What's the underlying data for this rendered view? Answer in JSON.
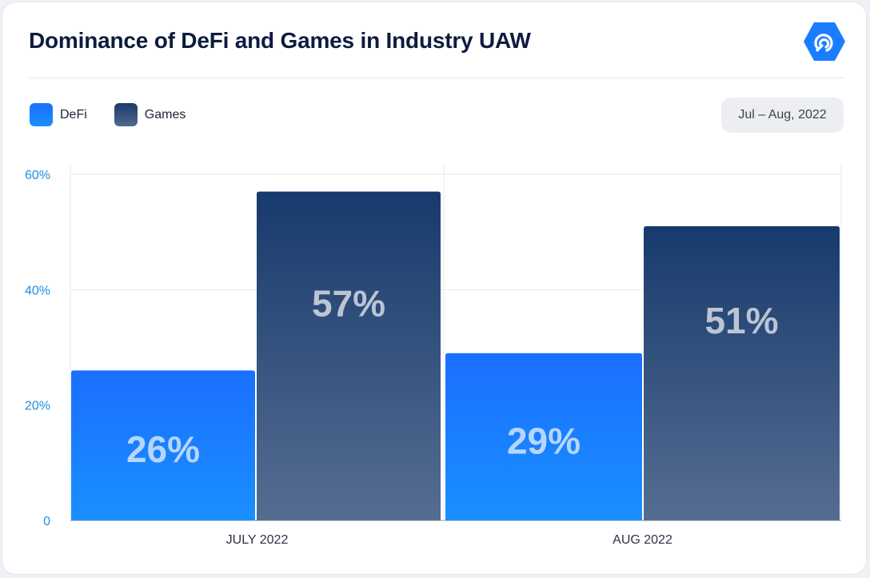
{
  "header": {
    "title": "Dominance of DeFi and Games in Industry UAW",
    "logo_icon": "dappradar-icon",
    "date_range": "Jul – Aug, 2022"
  },
  "legend": [
    {
      "label": "DeFi",
      "color": "#1a7dff"
    },
    {
      "label": "Games",
      "color": "#1f3f72"
    }
  ],
  "chart_data": {
    "type": "bar",
    "categories": [
      "JULY 2022",
      "AUG 2022"
    ],
    "series": [
      {
        "name": "DeFi",
        "values": [
          26,
          29
        ],
        "labels": [
          "26%",
          "29%"
        ]
      },
      {
        "name": "Games",
        "values": [
          57,
          51
        ],
        "labels": [
          "57%",
          "51%"
        ]
      }
    ],
    "ylim": [
      0,
      60
    ],
    "yticks": [
      0,
      20,
      40,
      60
    ],
    "ytick_labels": [
      "0",
      "20%",
      "40%",
      "60%"
    ],
    "grid": true,
    "legend_position": "top-left",
    "colors": {
      "defi_top": "#1a6fff",
      "defi_bottom": "#1a8fff",
      "games_top": "#173a6c",
      "games_bottom": "#566d92",
      "tick": "#1f8fe0",
      "grid": "#e6e9ee"
    }
  }
}
